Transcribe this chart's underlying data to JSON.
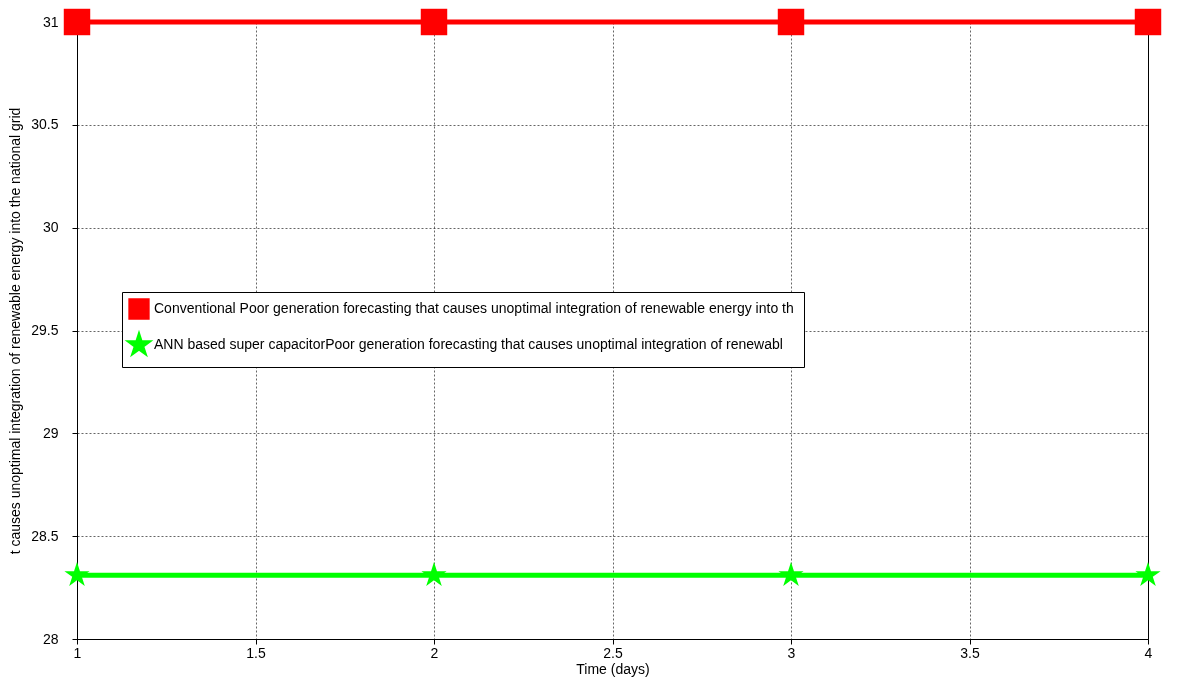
{
  "chart_data": {
    "type": "line",
    "xlabel": "Time (days)",
    "ylabel": "t causes unoptimal integration of renewable energy into the national grid",
    "x": [
      1,
      2,
      3,
      4
    ],
    "xlim": [
      1,
      4
    ],
    "xticks": [
      1,
      1.5,
      2,
      2.5,
      3,
      3.5,
      4
    ],
    "ylim": [
      28,
      31
    ],
    "yticks": [
      28,
      28.5,
      29,
      29.5,
      30,
      30.5,
      31
    ],
    "grid": true,
    "legend": "left",
    "line_style": "solid",
    "series": [
      {
        "name": "Conventional Poor generation forecasting  that causes unoptimal integration of renewable energy into th",
        "color": "#ff0000",
        "marker": "square",
        "values": [
          31,
          31,
          31,
          31
        ]
      },
      {
        "name": "ANN based super capacitorPoor generation forecasting  that causes unoptimal integration of renewabl",
        "color": "#00ff00",
        "marker": "star",
        "values": [
          28.31,
          28.31,
          28.31,
          28.31
        ]
      }
    ]
  }
}
